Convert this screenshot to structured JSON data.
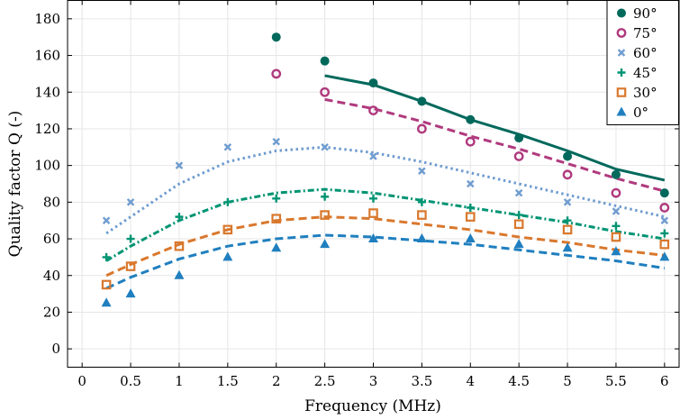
{
  "chart_data": {
    "type": "scatter",
    "xlabel": "Frequency (MHz)",
    "ylabel": "Quality factor Q (-)",
    "xlim": [
      -0.15,
      6.15
    ],
    "ylim": [
      -10,
      190
    ],
    "xticks": [
      0,
      0.5,
      1,
      1.5,
      2,
      2.5,
      3,
      3.5,
      4,
      4.5,
      5,
      5.5,
      6
    ],
    "yticks": [
      0,
      20,
      40,
      60,
      80,
      100,
      120,
      140,
      160,
      180
    ],
    "grid": true,
    "legend_position": "top-right",
    "series": [
      {
        "name": "90°",
        "marker": "filled-circle",
        "color": "#00695c",
        "points": [
          [
            2,
            170
          ],
          [
            2.5,
            157
          ],
          [
            3,
            145
          ],
          [
            3.5,
            135
          ],
          [
            4,
            125
          ],
          [
            4.5,
            115
          ],
          [
            5,
            105
          ],
          [
            5.5,
            95
          ],
          [
            6,
            85
          ]
        ],
        "fit": {
          "style": "solid",
          "points": [
            [
              2.5,
              149
            ],
            [
              3,
              144
            ],
            [
              3.5,
              135
            ],
            [
              4,
              125
            ],
            [
              4.5,
              117
            ],
            [
              5,
              108
            ],
            [
              5.5,
              98
            ],
            [
              6,
              92
            ]
          ]
        }
      },
      {
        "name": "75°",
        "marker": "open-circle",
        "color": "#b03a7e",
        "points": [
          [
            2,
            150
          ],
          [
            2.5,
            140
          ],
          [
            3,
            130
          ],
          [
            3.5,
            120
          ],
          [
            4,
            113
          ],
          [
            4.5,
            105
          ],
          [
            5,
            95
          ],
          [
            5.5,
            85
          ],
          [
            6,
            77
          ]
        ],
        "fit": {
          "style": "dashed",
          "points": [
            [
              2.5,
              136
            ],
            [
              3,
              131
            ],
            [
              3.5,
              124
            ],
            [
              4,
              116
            ],
            [
              4.5,
              109
            ],
            [
              5,
              101
            ],
            [
              5.5,
              93
            ],
            [
              6,
              86
            ]
          ]
        }
      },
      {
        "name": "60°",
        "marker": "cross",
        "color": "#6f9cd0",
        "points": [
          [
            0.25,
            70
          ],
          [
            0.5,
            80
          ],
          [
            1,
            100
          ],
          [
            1.5,
            110
          ],
          [
            2,
            113
          ],
          [
            2.5,
            110
          ],
          [
            3,
            105
          ],
          [
            3.5,
            97
          ],
          [
            4,
            90
          ],
          [
            4.5,
            85
          ],
          [
            5,
            80
          ],
          [
            5.5,
            75
          ],
          [
            6,
            70
          ]
        ],
        "fit": {
          "style": "dotted",
          "points": [
            [
              0.25,
              63
            ],
            [
              0.5,
              72
            ],
            [
              1,
              90
            ],
            [
              1.5,
              102
            ],
            [
              2,
              108
            ],
            [
              2.5,
              110
            ],
            [
              3,
              107
            ],
            [
              3.5,
              102
            ],
            [
              4,
              96
            ],
            [
              4.5,
              90
            ],
            [
              5,
              84
            ],
            [
              5.5,
              78
            ],
            [
              6,
              72
            ]
          ]
        }
      },
      {
        "name": "45°",
        "marker": "plus",
        "color": "#009473",
        "points": [
          [
            0.25,
            50
          ],
          [
            0.5,
            60
          ],
          [
            1,
            72
          ],
          [
            1.5,
            80
          ],
          [
            2,
            82
          ],
          [
            2.5,
            83
          ],
          [
            3,
            82
          ],
          [
            3.5,
            80
          ],
          [
            4,
            77
          ],
          [
            4.5,
            73
          ],
          [
            5,
            70
          ],
          [
            5.5,
            67
          ],
          [
            6,
            63
          ]
        ],
        "fit": {
          "style": "dash-dot",
          "points": [
            [
              0.25,
              48
            ],
            [
              0.5,
              56
            ],
            [
              1,
              70
            ],
            [
              1.5,
              80
            ],
            [
              2,
              85
            ],
            [
              2.5,
              87
            ],
            [
              3,
              85
            ],
            [
              3.5,
              81
            ],
            [
              4,
              77
            ],
            [
              4.5,
              73
            ],
            [
              5,
              69
            ],
            [
              5.5,
              64
            ],
            [
              6,
              60
            ]
          ]
        }
      },
      {
        "name": "30°",
        "marker": "open-square",
        "color": "#d9782d",
        "points": [
          [
            0.25,
            35
          ],
          [
            0.5,
            45
          ],
          [
            1,
            56
          ],
          [
            1.5,
            65
          ],
          [
            2,
            71
          ],
          [
            2.5,
            73
          ],
          [
            3,
            74
          ],
          [
            3.5,
            73
          ],
          [
            4,
            72
          ],
          [
            4.5,
            68
          ],
          [
            5,
            65
          ],
          [
            5.5,
            61
          ],
          [
            6,
            57
          ]
        ],
        "fit": {
          "style": "dashed",
          "points": [
            [
              0.25,
              40
            ],
            [
              0.5,
              46
            ],
            [
              1,
              57
            ],
            [
              1.5,
              65
            ],
            [
              2,
              70
            ],
            [
              2.5,
              72
            ],
            [
              3,
              71
            ],
            [
              3.5,
              68
            ],
            [
              4,
              65
            ],
            [
              4.5,
              61
            ],
            [
              5,
              58
            ],
            [
              5.5,
              54
            ],
            [
              6,
              51
            ]
          ]
        }
      },
      {
        "name": "0°",
        "marker": "filled-triangle",
        "color": "#1f7fbf",
        "points": [
          [
            0.25,
            25
          ],
          [
            0.5,
            30
          ],
          [
            1,
            40
          ],
          [
            1.5,
            50
          ],
          [
            2,
            55
          ],
          [
            2.5,
            57
          ],
          [
            3,
            60
          ],
          [
            3.5,
            60
          ],
          [
            4,
            60
          ],
          [
            4.5,
            57
          ],
          [
            5,
            55
          ],
          [
            5.5,
            53
          ],
          [
            6,
            50
          ]
        ],
        "fit": {
          "style": "dashed",
          "points": [
            [
              0.25,
              33
            ],
            [
              0.5,
              39
            ],
            [
              1,
              49
            ],
            [
              1.5,
              56
            ],
            [
              2,
              60
            ],
            [
              2.5,
              62
            ],
            [
              3,
              61
            ],
            [
              3.5,
              59
            ],
            [
              4,
              57
            ],
            [
              4.5,
              54
            ],
            [
              5,
              51
            ],
            [
              5.5,
              48
            ],
            [
              6,
              44
            ]
          ]
        }
      }
    ]
  }
}
